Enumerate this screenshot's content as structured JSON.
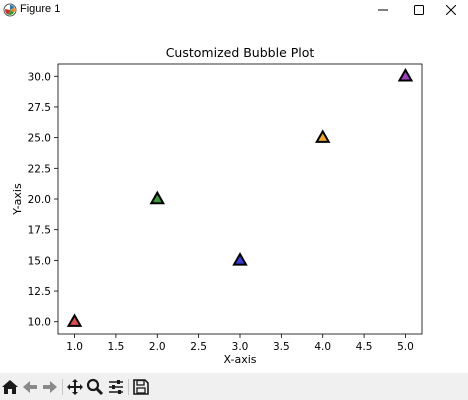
{
  "window": {
    "title": "Figure 1"
  },
  "toolbar": {
    "buttons": [
      {
        "name": "home",
        "icon": "home-icon"
      },
      {
        "name": "back",
        "icon": "arrow-left-icon"
      },
      {
        "name": "forward",
        "icon": "arrow-right-icon"
      },
      {
        "name": "pan",
        "icon": "move-icon"
      },
      {
        "name": "zoom",
        "icon": "zoom-icon"
      },
      {
        "name": "configure",
        "icon": "sliders-icon"
      },
      {
        "name": "save",
        "icon": "save-icon"
      }
    ]
  },
  "chart_data": {
    "type": "scatter",
    "title": "Customized Bubble Plot",
    "xlabel": "X-axis",
    "ylabel": "Y-axis",
    "marker": "triangle",
    "x": [
      1,
      2,
      3,
      4,
      5
    ],
    "y": [
      10,
      20,
      15,
      25,
      30
    ],
    "colors": [
      "#e04a4a",
      "#3a9a3a",
      "#3a3ad8",
      "#f5a623",
      "#a040c0"
    ],
    "edge_color": "#000000",
    "xlim": [
      0.8,
      5.2
    ],
    "ylim": [
      9.0,
      31.0
    ],
    "xticks": [
      1.0,
      1.5,
      2.0,
      2.5,
      3.0,
      3.5,
      4.0,
      4.5,
      5.0
    ],
    "yticks": [
      10.0,
      12.5,
      15.0,
      17.5,
      20.0,
      22.5,
      25.0,
      27.5,
      30.0
    ],
    "xtick_labels": [
      "1.0",
      "1.5",
      "2.0",
      "2.5",
      "3.0",
      "3.5",
      "4.0",
      "4.5",
      "5.0"
    ],
    "ytick_labels": [
      "10.0",
      "12.5",
      "15.0",
      "17.5",
      "20.0",
      "22.5",
      "25.0",
      "27.5",
      "30.0"
    ],
    "grid": false
  }
}
